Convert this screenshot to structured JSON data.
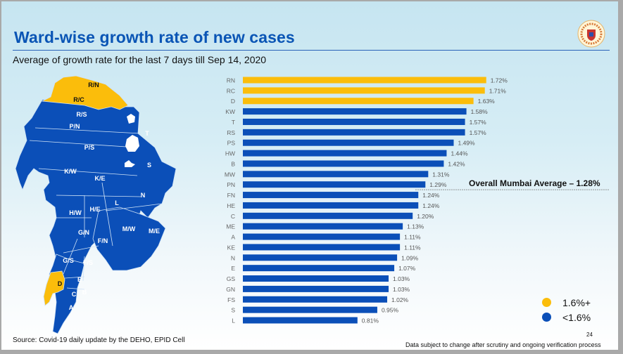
{
  "slide": {
    "title": "Ward-wise growth rate of new cases",
    "subtitle": "Average of growth rate for the last 7 days till Sep 14, 2020",
    "source": "Source: Covid-19 daily update by the DEHO, EPID Cell",
    "page_number": "24",
    "disclaimer": "Data subject to change after scrutiny and ongoing verification process",
    "logo_icon": "municipal-corporation-seal-icon"
  },
  "colors": {
    "high": "#fbbd0b",
    "low": "#0b4fb8",
    "title": "#0a55b5"
  },
  "map": {
    "highlighted_wards": [
      "R/N",
      "R/C",
      "D"
    ],
    "ward_labels": [
      "R/N",
      "R/C",
      "R/S",
      "P/N",
      "P/S",
      "T",
      "S",
      "K/W",
      "K/E",
      "N",
      "L",
      "H/W",
      "H/E",
      "G/N",
      "M/W",
      "M/E",
      "F/N",
      "G/S",
      "F/S",
      "D",
      "E",
      "C",
      "B",
      "A"
    ]
  },
  "average": {
    "label": "Overall Mumbai Average – 1.28%",
    "value": 1.28
  },
  "legend": [
    {
      "label": "1.6%+",
      "color": "#fbbd0b"
    },
    {
      "label": "<1.6%",
      "color": "#0b4fb8"
    }
  ],
  "chart_data": {
    "type": "bar",
    "orientation": "horizontal",
    "title": "Ward-wise growth rate of new cases",
    "subtitle": "Average of growth rate for the last 7 days till Sep 14, 2020",
    "xlabel": "",
    "ylabel": "",
    "unit": "%",
    "threshold": 1.6,
    "reference_line": {
      "label": "Overall Mumbai Average – 1.28%",
      "value": 1.28
    },
    "categories": [
      "RN",
      "RC",
      "D",
      "KW",
      "T",
      "RS",
      "PS",
      "HW",
      "B",
      "MW",
      "PN",
      "FN",
      "HE",
      "C",
      "ME",
      "A",
      "KE",
      "N",
      "E",
      "GS",
      "GN",
      "FS",
      "S",
      "L"
    ],
    "values": [
      1.72,
      1.71,
      1.63,
      1.58,
      1.57,
      1.57,
      1.49,
      1.44,
      1.42,
      1.31,
      1.29,
      1.24,
      1.24,
      1.2,
      1.13,
      1.11,
      1.11,
      1.09,
      1.07,
      1.03,
      1.03,
      1.02,
      0.95,
      0.81
    ],
    "labels": [
      "1.72%",
      "1.71%",
      "1.63%",
      "1.58%",
      "1.57%",
      "1.57%",
      "1.49%",
      "1.44%",
      "1.42%",
      "1.31%",
      "1.29%",
      "1.24%",
      "1.24%",
      "1.20%",
      "1.13%",
      "1.11%",
      "1.11%",
      "1.09%",
      "1.07%",
      "1.03%",
      "1.03%",
      "1.02%",
      "0.95%",
      "0.81%"
    ],
    "xlim": [
      0,
      1.8
    ],
    "grid": false,
    "legend_position": "bottom-right"
  }
}
